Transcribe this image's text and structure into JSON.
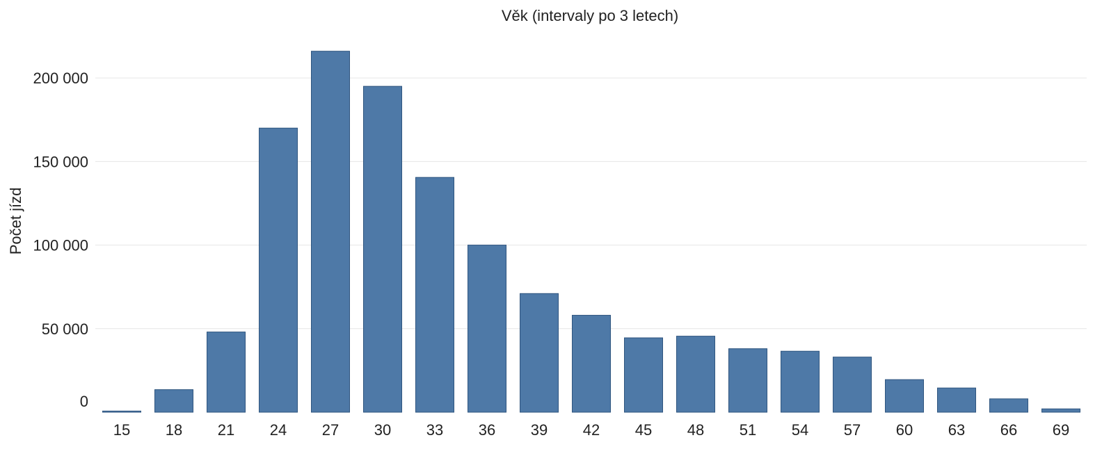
{
  "chart_data": {
    "type": "bar",
    "title": "Věk (intervaly po 3 letech)",
    "xlabel": "Věk (intervaly po 3 letech)",
    "ylabel": "Počet jízd",
    "categories": [
      "15",
      "18",
      "21",
      "24",
      "27",
      "30",
      "33",
      "36",
      "39",
      "42",
      "45",
      "48",
      "51",
      "54",
      "57",
      "60",
      "63",
      "66",
      "69"
    ],
    "values": [
      700,
      13500,
      48000,
      170000,
      216000,
      195000,
      140500,
      100000,
      71000,
      58000,
      44500,
      45500,
      38000,
      36500,
      33000,
      19500,
      14500,
      8000,
      2000
    ],
    "ylim": [
      0,
      230000
    ],
    "yticks": [
      0,
      50000,
      100000,
      150000,
      200000
    ],
    "ytick_labels": [
      "0",
      "50 000",
      "100 000",
      "150 000",
      "200 000"
    ],
    "grid": true,
    "legend": "none",
    "bar_color": "#4e79a7"
  }
}
